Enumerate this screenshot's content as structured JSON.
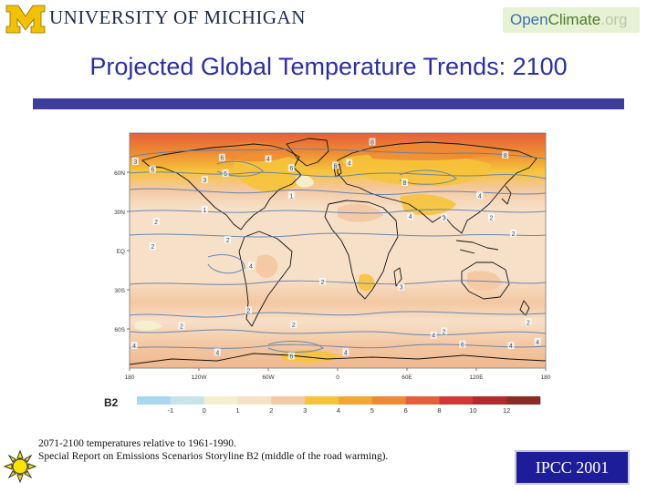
{
  "header": {
    "university_name": "UNIVERSITY OF MICHIGAN",
    "badge_open": "Open",
    "badge_climate": "Climate",
    "badge_org": ".org"
  },
  "title": "Projected Global Temperature Trends: 2100",
  "map": {
    "lat_labels": [
      "60N",
      "30N",
      "EQ",
      "30S",
      "60S"
    ],
    "lon_labels": [
      "180",
      "120W",
      "60W",
      "0",
      "60E",
      "120E",
      "180"
    ],
    "legend_label": "B2",
    "legend_ticks": [
      "-1",
      "0",
      "1",
      "2",
      "3",
      "4",
      "5",
      "6",
      "8",
      "10",
      "12"
    ],
    "legend_colors": [
      "#a8d8ee",
      "#c8e4ea",
      "#f4f0cf",
      "#f7e0c8",
      "#f3c8a2",
      "#f6c33a",
      "#f5a533",
      "#ee8a33",
      "#e5603a",
      "#cf3a36",
      "#b32b2e",
      "#8c2a24"
    ],
    "contour_labels": [
      {
        "text": "8",
        "lon": 30,
        "lat": 83
      },
      {
        "text": "8",
        "lon": 145,
        "lat": 73
      },
      {
        "text": "3",
        "lon": -175,
        "lat": 68
      },
      {
        "text": "6",
        "lon": -160,
        "lat": 62
      },
      {
        "text": "6",
        "lon": -100,
        "lat": 71
      },
      {
        "text": "4",
        "lon": -60,
        "lat": 70
      },
      {
        "text": "6",
        "lon": -40,
        "lat": 63
      },
      {
        "text": "6",
        "lon": -2,
        "lat": 65
      },
      {
        "text": "4",
        "lon": 10,
        "lat": 67
      },
      {
        "text": "3",
        "lon": -115,
        "lat": 54
      },
      {
        "text": "6",
        "lon": -97,
        "lat": 59
      },
      {
        "text": "1",
        "lon": -40,
        "lat": 42
      },
      {
        "text": "8",
        "lon": 58,
        "lat": 52
      },
      {
        "text": "4",
        "lon": 123,
        "lat": 42
      },
      {
        "text": "4",
        "lon": 63,
        "lat": 26
      },
      {
        "text": "3",
        "lon": 92,
        "lat": 25
      },
      {
        "text": "2",
        "lon": 133,
        "lat": 25
      },
      {
        "text": "1",
        "lon": -115,
        "lat": 31
      },
      {
        "text": "2",
        "lon": -157,
        "lat": 22
      },
      {
        "text": "2",
        "lon": 152,
        "lat": 13
      },
      {
        "text": "2",
        "lon": -160,
        "lat": 3
      },
      {
        "text": "2",
        "lon": -95,
        "lat": 8
      },
      {
        "text": "4",
        "lon": -75,
        "lat": -12
      },
      {
        "text": "2",
        "lon": -13,
        "lat": -24
      },
      {
        "text": "3",
        "lon": 55,
        "lat": -28
      },
      {
        "text": "2",
        "lon": -77,
        "lat": -46
      },
      {
        "text": "2",
        "lon": -135,
        "lat": -58
      },
      {
        "text": "2",
        "lon": -38,
        "lat": -57
      },
      {
        "text": "2",
        "lon": 92,
        "lat": -62
      },
      {
        "text": "2",
        "lon": 165,
        "lat": -55
      },
      {
        "text": "4",
        "lon": -176,
        "lat": -73
      },
      {
        "text": "4",
        "lon": -104,
        "lat": -78
      },
      {
        "text": "6",
        "lon": -40,
        "lat": -81
      },
      {
        "text": "4",
        "lon": 7,
        "lat": -78
      },
      {
        "text": "4",
        "lon": 83,
        "lat": -65
      },
      {
        "text": "6",
        "lon": 108,
        "lat": -72
      },
      {
        "text": "4",
        "lon": 150,
        "lat": -73
      },
      {
        "text": "4",
        "lon": 173,
        "lat": -70
      }
    ]
  },
  "caption": {
    "line1": "2071-2100 temperatures relative to 1961-1990.",
    "line2": "Special Report on Emissions Scenarios Storyline B2 (middle of the road warming)."
  },
  "ipcc_label": "IPCC 2001"
}
